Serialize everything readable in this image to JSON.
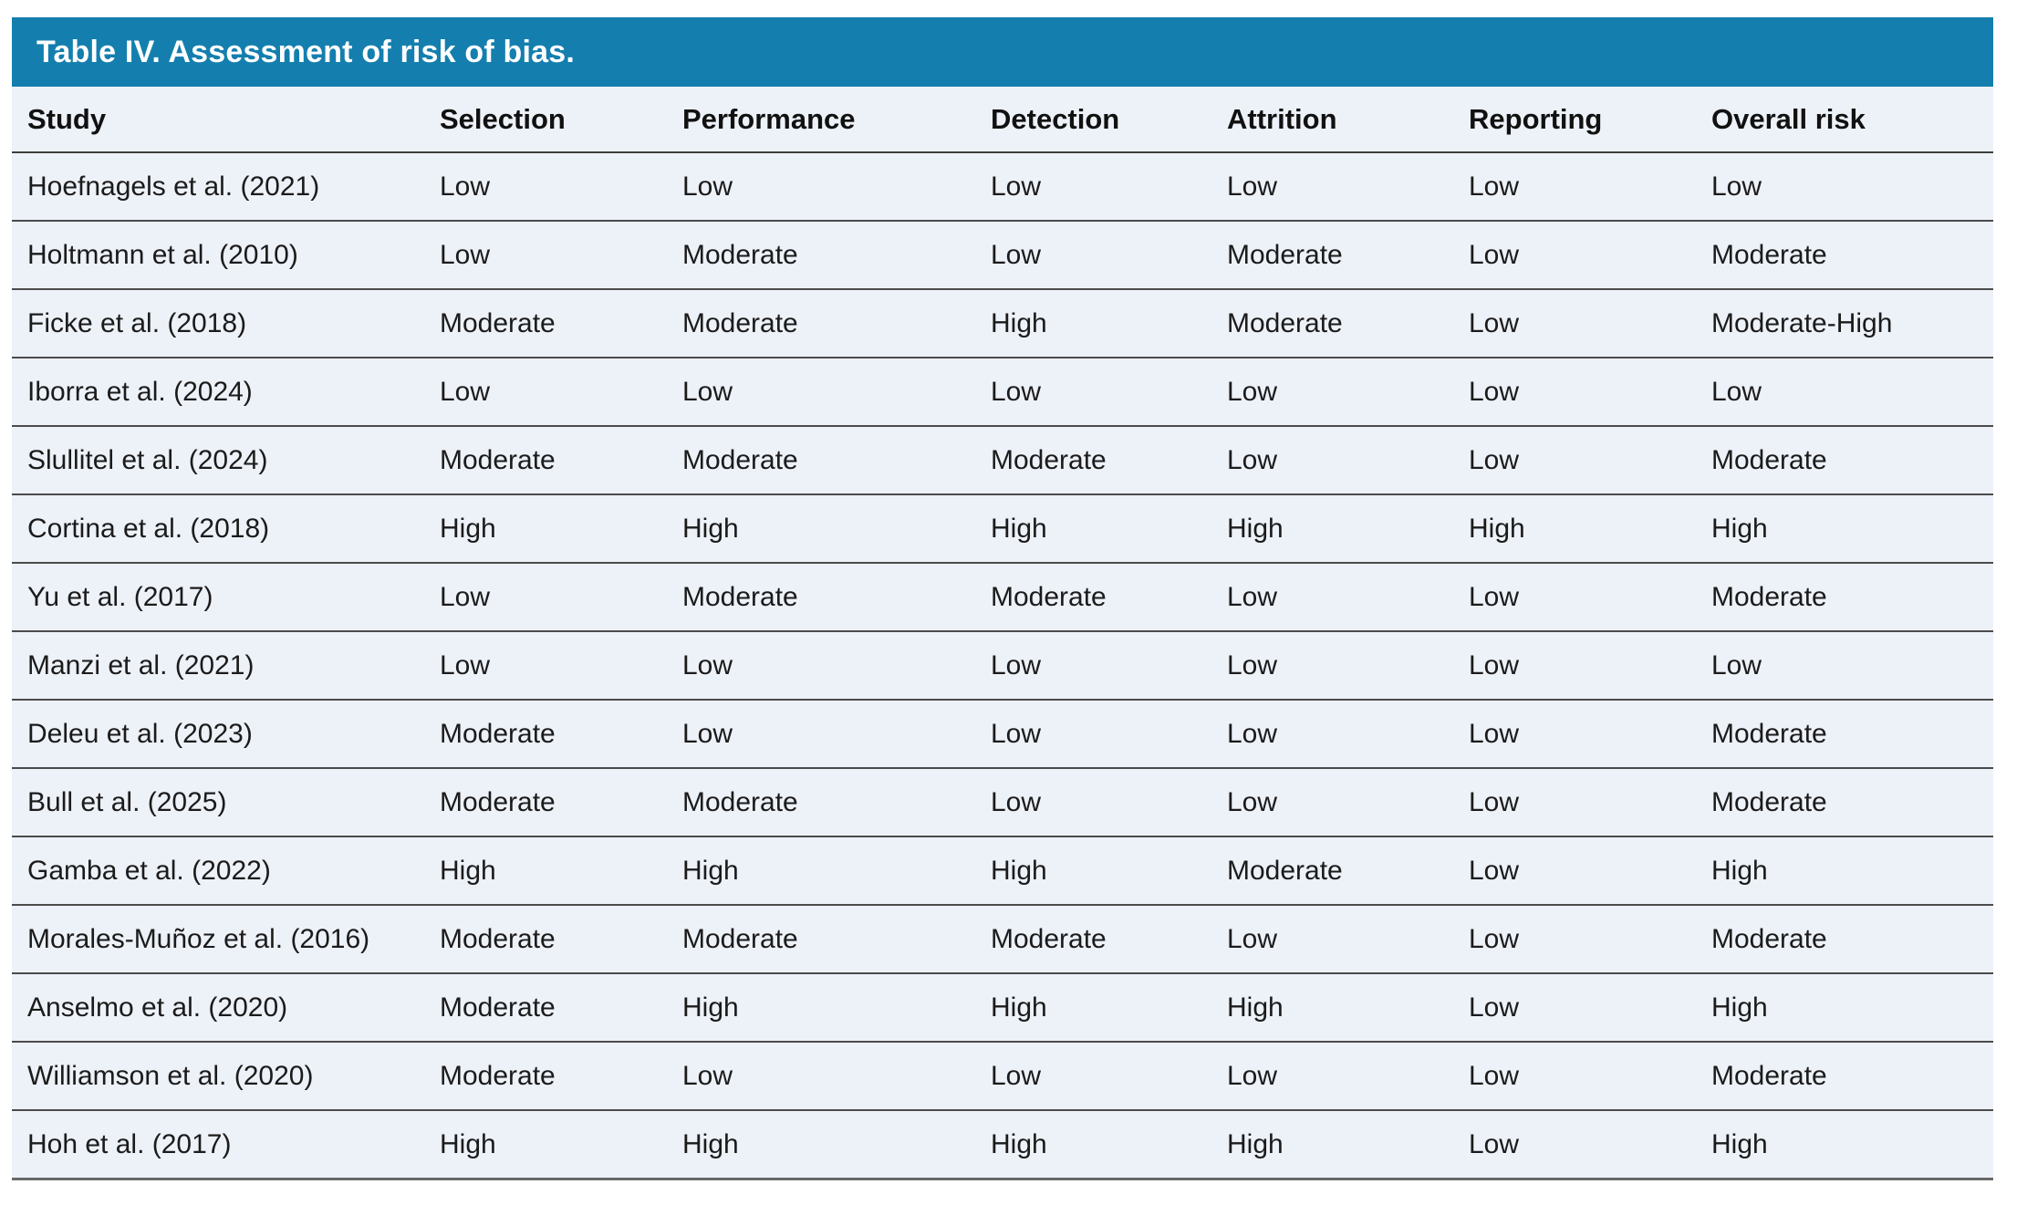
{
  "table": {
    "title": "Table IV. Assessment of risk of bias.",
    "columns": [
      "Study",
      "Selection",
      "Performance",
      "Detection",
      "Attrition",
      "Reporting",
      "Overall risk"
    ],
    "rows": [
      [
        "Hoefnagels et al. (2021)",
        "Low",
        "Low",
        "Low",
        "Low",
        "Low",
        "Low"
      ],
      [
        "Holtmann et al. (2010)",
        "Low",
        "Moderate",
        "Low",
        "Moderate",
        "Low",
        "Moderate"
      ],
      [
        "Ficke et al. (2018)",
        "Moderate",
        "Moderate",
        "High",
        "Moderate",
        "Low",
        "Moderate-High"
      ],
      [
        "Iborra et al. (2024)",
        "Low",
        "Low",
        "Low",
        "Low",
        "Low",
        "Low"
      ],
      [
        "Slullitel et al. (2024)",
        "Moderate",
        "Moderate",
        "Moderate",
        "Low",
        "Low",
        "Moderate"
      ],
      [
        "Cortina et al. (2018)",
        "High",
        "High",
        "High",
        "High",
        "High",
        "High"
      ],
      [
        "Yu et al. (2017)",
        "Low",
        "Moderate",
        "Moderate",
        "Low",
        "Low",
        "Moderate"
      ],
      [
        "Manzi et al. (2021)",
        "Low",
        "Low",
        "Low",
        "Low",
        "Low",
        "Low"
      ],
      [
        "Deleu et al. (2023)",
        "Moderate",
        "Low",
        "Low",
        "Low",
        "Low",
        "Moderate"
      ],
      [
        "Bull et al. (2025)",
        "Moderate",
        "Moderate",
        "Low",
        "Low",
        "Low",
        "Moderate"
      ],
      [
        "Gamba et al. (2022)",
        "High",
        "High",
        "High",
        "Moderate",
        "Low",
        "High"
      ],
      [
        "Morales-Muñoz et al. (2016)",
        "Moderate",
        "Moderate",
        "Moderate",
        "Low",
        "Low",
        "Moderate"
      ],
      [
        "Anselmo et al. (2020)",
        "Moderate",
        "High",
        "High",
        "High",
        "Low",
        "High"
      ],
      [
        "Williamson et al. (2020)",
        "Moderate",
        "Low",
        "Low",
        "Low",
        "Low",
        "Moderate"
      ],
      [
        "Hoh et al. (2017)",
        "High",
        "High",
        "High",
        "High",
        "Low",
        "High"
      ]
    ]
  },
  "colors": {
    "title_bar": "#147fae",
    "title_text": "#ffffff",
    "row_background": "#edf1f8",
    "header_text": "#111111",
    "body_text": "#1b1b1b",
    "divider": "#4b4b4b",
    "header_divider": "#3d3d3d",
    "bottom_border": "#696969"
  }
}
